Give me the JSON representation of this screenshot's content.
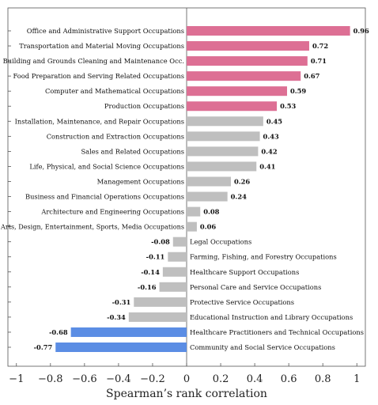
{
  "chart_data": {
    "type": "bar",
    "orientation": "horizontal",
    "xlabel": "Spearman’s rank correlation",
    "xlim": [
      -1.05,
      1.05
    ],
    "xticks": [
      -1,
      -0.8,
      -0.6,
      -0.4,
      -0.2,
      0,
      0.2,
      0.4,
      0.6,
      0.8,
      1
    ],
    "xtick_labels": [
      "−1",
      "−0.8",
      "−0.6",
      "−0.4",
      "−0.2",
      "0",
      "0.2",
      "0.4",
      "0.6",
      "0.8",
      "1"
    ],
    "grid": false,
    "colors": {
      "high_positive": "#dd6f94",
      "neutral": "#bfbfbf",
      "high_negative": "#5b8de4"
    },
    "categories": [
      "Office and Administrative Support Occupations",
      "Transportation and Material Moving Occupations",
      "Building and Grounds Cleaning and Maintenance Occ.",
      "Food Preparation and Serving Related Occupations",
      "Computer and Mathematical Occupations",
      "Production Occupations",
      "Installation, Maintenance, and Repair Occupations",
      "Construction and Extraction Occupations",
      "Sales and Related Occupations",
      "Life, Physical, and Social Science Occupations",
      "Management Occupations",
      "Business and Financial Operations Occupations",
      "Architecture and Engineering Occupations",
      "Arts, Design, Entertainment, Sports, Media Occupations",
      "Legal Occupations",
      "Farming, Fishing, and Forestry Occupations",
      "Healthcare Support Occupations",
      "Personal Care and Service Occupations",
      "Protective Service Occupations",
      "Educational Instruction and Library Occupations",
      "Healthcare Practitioners and Technical Occupations",
      "Community and Social Service Occupations"
    ],
    "values": [
      0.96,
      0.72,
      0.71,
      0.67,
      0.59,
      0.53,
      0.45,
      0.43,
      0.42,
      0.41,
      0.26,
      0.24,
      0.08,
      0.06,
      -0.08,
      -0.11,
      -0.14,
      -0.16,
      -0.31,
      -0.34,
      -0.68,
      -0.77
    ],
    "value_labels": [
      "0.96",
      "0.72",
      "0.71",
      "0.67",
      "0.59",
      "0.53",
      "0.45",
      "0.43",
      "0.42",
      "0.41",
      "0.26",
      "0.24",
      "0.08",
      "0.06",
      "-0.08",
      "-0.11",
      "-0.14",
      "-0.16",
      "-0.31",
      "-0.34",
      "-0.68",
      "-0.77"
    ],
    "bar_colors": [
      "high_positive",
      "high_positive",
      "high_positive",
      "high_positive",
      "high_positive",
      "high_positive",
      "neutral",
      "neutral",
      "neutral",
      "neutral",
      "neutral",
      "neutral",
      "neutral",
      "neutral",
      "neutral",
      "neutral",
      "neutral",
      "neutral",
      "neutral",
      "neutral",
      "high_negative",
      "high_negative"
    ]
  }
}
